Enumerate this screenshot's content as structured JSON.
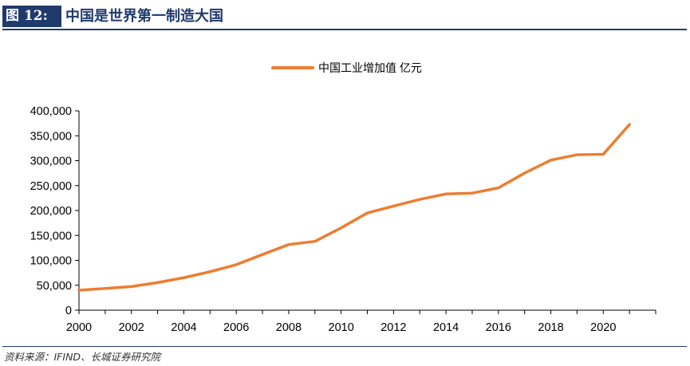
{
  "header": {
    "figure_label": "图 12:",
    "title": "中国是世界第一制造大国"
  },
  "source": "资料来源：IFIND、长城证券研究院",
  "colors": {
    "series": "#ed7d31",
    "header_bg": "#1f3a6d",
    "axis": "#000000"
  },
  "chart_data": {
    "type": "line",
    "x": [
      2000,
      2001,
      2002,
      2003,
      2004,
      2005,
      2006,
      2007,
      2008,
      2009,
      2010,
      2011,
      2012,
      2013,
      2014,
      2015,
      2016,
      2017,
      2018,
      2019,
      2020,
      2021
    ],
    "x_ticks": [
      "2000",
      "2002",
      "2004",
      "2006",
      "2008",
      "2010",
      "2012",
      "2014",
      "2016",
      "2018",
      "2020"
    ],
    "y_ticks": [
      "0",
      "50,000",
      "100,000",
      "150,000",
      "200,000",
      "250,000",
      "300,000",
      "350,000",
      "400,000"
    ],
    "ylim": [
      0,
      400000
    ],
    "xlim": [
      2000,
      2022
    ],
    "series": [
      {
        "name": "中国工业增加值 亿元",
        "values": [
          40000,
          43600,
          47400,
          55400,
          65200,
          77200,
          91300,
          111700,
          131700,
          138100,
          165100,
          195100,
          208900,
          222300,
          233200,
          234900,
          245400,
          275100,
          301100,
          311900,
          312900,
          372600
        ]
      }
    ],
    "legend_position": "top-center",
    "grid": false
  }
}
